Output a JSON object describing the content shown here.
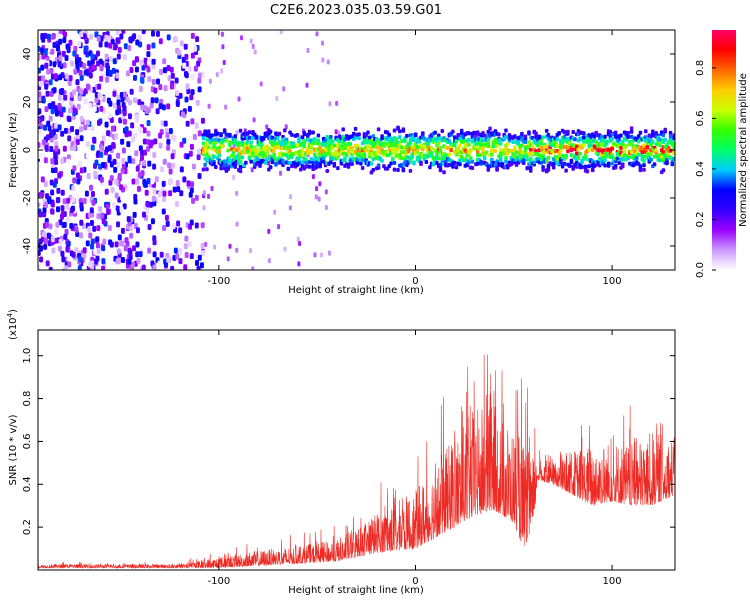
{
  "title": "C2E6.2023.035.03.59.G01",
  "colors": {
    "snr_line": "#ee2a24",
    "frame": "#000000",
    "colormap": [
      "#ffffff",
      "#cc99ff",
      "#9900ff",
      "#3300ff",
      "#0000ff",
      "#00ccff",
      "#00ff66",
      "#33ff00",
      "#ccff00",
      "#ffcc00",
      "#ff6600",
      "#ff0000",
      "#ff0066"
    ]
  },
  "chart_data": [
    {
      "type": "heatmap",
      "xlabel": "Height of straight line (km)",
      "ylabel": "Frequency (Hz)",
      "xlim": [
        -192,
        132
      ],
      "ylim": [
        -50,
        50
      ],
      "x_ticks": [
        -100,
        0,
        100
      ],
      "x_tick_labels": [
        "-100",
        "0",
        "100"
      ],
      "y_ticks": [
        -40,
        -20,
        0,
        20,
        40
      ],
      "y_tick_labels": [
        "-40",
        "-20",
        "0",
        "20",
        "40"
      ],
      "grid": false,
      "description_regions": [
        {
          "x_range": [
            -192,
            -108
          ],
          "pattern": "broadband noise",
          "amplitude_range": [
            0.0,
            0.35
          ]
        },
        {
          "x_range": [
            -108,
            132
          ],
          "pattern": "band near 0 Hz",
          "freq_halfwidth_hz": 8,
          "amplitude_range": [
            0.2,
            0.95
          ]
        }
      ],
      "colorbar": {
        "label": "Normalized spectral amplitude",
        "range": [
          0.0,
          0.95
        ],
        "ticks": [
          0.0,
          0.2,
          0.4,
          0.6,
          0.8
        ],
        "tick_labels": [
          "0.0",
          "0.2",
          "0.4",
          "0.6",
          "0.8"
        ]
      }
    },
    {
      "type": "line",
      "xlabel": "Height of straight line (km)",
      "ylabel": "SNR (10 * v/v)",
      "y_scale_label": "(x10",
      "y_scale_exponent": "4",
      "y_scale_close": ")",
      "xlim": [
        -192,
        132
      ],
      "ylim": [
        0.0,
        1.12
      ],
      "x_ticks": [
        -100,
        0,
        100
      ],
      "x_tick_labels": [
        "-100",
        "0",
        "100"
      ],
      "y_ticks": [
        0.2,
        0.4,
        0.6,
        0.8,
        1.0
      ],
      "y_tick_labels": [
        "0.2",
        "0.4",
        "0.6",
        "0.8",
        "1.0"
      ],
      "grid": false,
      "series": [
        {
          "envelope_x": [
            -192,
            -120,
            -100,
            -80,
            -60,
            -40,
            -20,
            0,
            10,
            20,
            30,
            40,
            50,
            55,
            60,
            62,
            70,
            80,
            90,
            100,
            110,
            120,
            132
          ],
          "envelope_low": [
            0.01,
            0.01,
            0.01,
            0.02,
            0.03,
            0.04,
            0.08,
            0.1,
            0.15,
            0.2,
            0.25,
            0.28,
            0.22,
            0.1,
            0.2,
            0.42,
            0.4,
            0.35,
            0.3,
            0.32,
            0.3,
            0.3,
            0.35
          ],
          "envelope_high": [
            0.04,
            0.04,
            0.1,
            0.14,
            0.17,
            0.21,
            0.4,
            0.55,
            0.75,
            0.9,
            1.1,
            1.1,
            0.95,
            0.92,
            0.75,
            0.58,
            0.57,
            0.7,
            0.78,
            0.8,
            0.78,
            0.88,
            0.8
          ]
        }
      ]
    }
  ]
}
